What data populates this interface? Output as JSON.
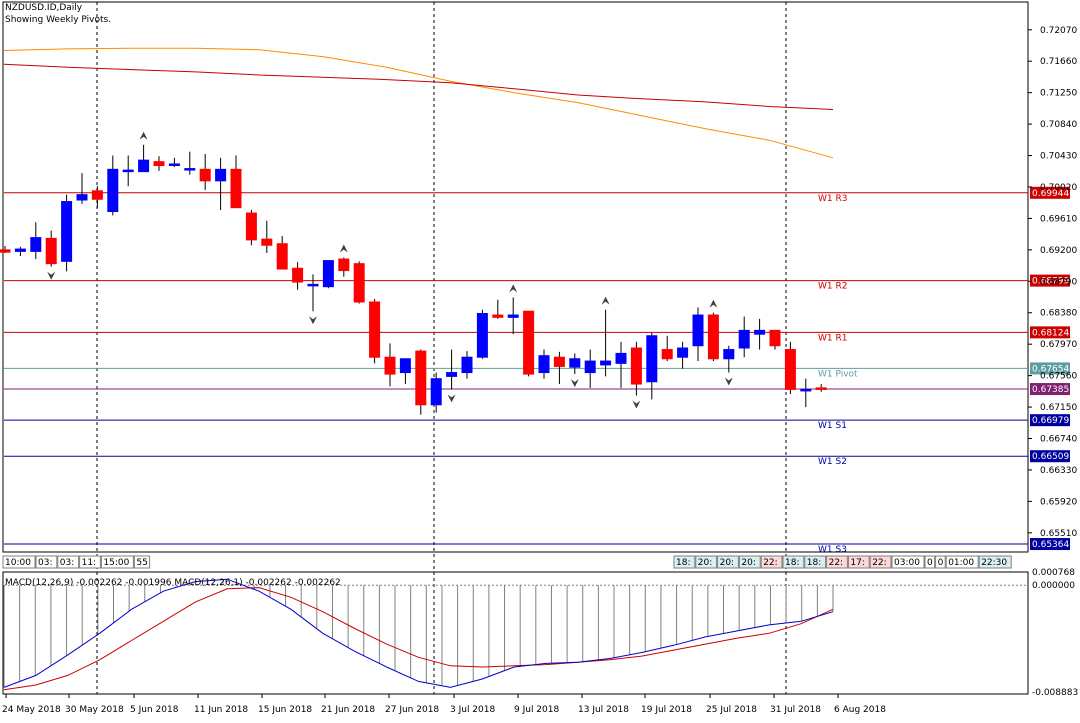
{
  "header": {
    "symbol_line": "NZDUSD.ID,Daily",
    "subtitle_line": "Showing Weekly Pivots."
  },
  "colors": {
    "bull": "#0000ff",
    "bear": "#ff0000",
    "wick": "#000000",
    "ma_fast": "#ff8c00",
    "ma_slow": "#c80000",
    "resistance": "#cc0000",
    "pivot": "#5f9ea0",
    "support": "#00009f",
    "macd_hist": "#808080",
    "macd_line": "#0000cc",
    "signal_line": "#cc0000"
  },
  "price_axis": {
    "ticks": [
      "0.72070",
      "0.71660",
      "0.71250",
      "0.70840",
      "0.70430",
      "0.70020",
      "0.69610",
      "0.69200",
      "0.68790",
      "0.68380",
      "0.67970",
      "0.67560",
      "0.67150",
      "0.66740",
      "0.66330",
      "0.65920",
      "0.65510"
    ],
    "range": [
      0.6526,
      0.7238
    ]
  },
  "pivots": [
    {
      "label": "W1 R3",
      "value": 0.69944,
      "tag": "0.69944",
      "kind": "resistance"
    },
    {
      "label": "W1 R2",
      "value": 0.68799,
      "tag": "0.68799",
      "kind": "resistance"
    },
    {
      "label": "W1 R1",
      "value": 0.68124,
      "tag": "0.68124",
      "kind": "resistance"
    },
    {
      "label": "W1 Pivot",
      "value": 0.67654,
      "tag": "0.67654",
      "kind": "pivot"
    },
    {
      "label": "",
      "value": 0.67385,
      "tag": "0.67385",
      "kind": "ma"
    },
    {
      "label": "W1 S1",
      "value": 0.66979,
      "tag": "0.66979",
      "kind": "support"
    },
    {
      "label": "W1 S2",
      "value": 0.66509,
      "tag": "0.66509",
      "kind": "support"
    },
    {
      "label": "W1 S3",
      "value": 0.65364,
      "tag": "0.65364",
      "kind": "support"
    }
  ],
  "time_axis": {
    "labels": [
      "24 May 2018",
      "30 May 2018",
      "5 Jun 2018",
      "11 Jun 2018",
      "15 Jun 2018",
      "21 Jun 2018",
      "27 Jun 2018",
      "3 Jul 2018",
      "9 Jul 2018",
      "13 Jul 2018",
      "19 Jul 2018",
      "25 Jul 2018",
      "31 Jul 2018",
      "6 Aug 2018"
    ]
  },
  "session_boxes_left": [
    "10:00",
    "03:",
    "03:",
    "11:",
    "15:00",
    "55"
  ],
  "session_boxes_right": [
    "18:",
    "20:",
    "20:",
    "20:",
    "22:",
    "18:",
    "18:",
    "22:",
    "17:",
    "22:",
    "03:00",
    "0",
    "0",
    "01:00",
    "22:30"
  ],
  "macd": {
    "title": "MACD(12,26,9) -0.002262 -0.001996 MACD(12,26,1) -0.002262 -0.002262",
    "ticks": [
      "0.000768",
      "0.000000",
      "-0.008883"
    ],
    "range": [
      -0.008883,
      0.000768
    ]
  },
  "chart_data": {
    "type": "candlestick",
    "title": "NZDUSD.ID,Daily",
    "candles": [
      {
        "o": 0.692,
        "h": 0.6925,
        "l": 0.6916,
        "c": 0.6917
      },
      {
        "o": 0.6918,
        "h": 0.6924,
        "l": 0.6912,
        "c": 0.6921
      },
      {
        "o": 0.6918,
        "h": 0.6956,
        "l": 0.6908,
        "c": 0.6936
      },
      {
        "o": 0.6935,
        "h": 0.6945,
        "l": 0.6898,
        "c": 0.6902
      },
      {
        "o": 0.6905,
        "h": 0.6992,
        "l": 0.6892,
        "c": 0.6983
      },
      {
        "o": 0.6985,
        "h": 0.702,
        "l": 0.698,
        "c": 0.6992
      },
      {
        "o": 0.6997,
        "h": 0.7003,
        "l": 0.6975,
        "c": 0.6986
      },
      {
        "o": 0.697,
        "h": 0.7043,
        "l": 0.6965,
        "c": 0.7025
      },
      {
        "o": 0.7022,
        "h": 0.7043,
        "l": 0.7003,
        "c": 0.7024
      },
      {
        "o": 0.7022,
        "h": 0.7057,
        "l": 0.7022,
        "c": 0.7037
      },
      {
        "o": 0.7035,
        "h": 0.7042,
        "l": 0.7023,
        "c": 0.703
      },
      {
        "o": 0.703,
        "h": 0.704,
        "l": 0.7028,
        "c": 0.7032
      },
      {
        "o": 0.7025,
        "h": 0.7048,
        "l": 0.7018,
        "c": 0.7026
      },
      {
        "o": 0.7025,
        "h": 0.7045,
        "l": 0.6998,
        "c": 0.701
      },
      {
        "o": 0.701,
        "h": 0.704,
        "l": 0.6972,
        "c": 0.7025
      },
      {
        "o": 0.7025,
        "h": 0.7043,
        "l": 0.6977,
        "c": 0.6975
      },
      {
        "o": 0.6968,
        "h": 0.6972,
        "l": 0.6926,
        "c": 0.6933
      },
      {
        "o": 0.6934,
        "h": 0.6958,
        "l": 0.6916,
        "c": 0.6926
      },
      {
        "o": 0.6928,
        "h": 0.6938,
        "l": 0.6896,
        "c": 0.6895
      },
      {
        "o": 0.6896,
        "h": 0.6904,
        "l": 0.6868,
        "c": 0.6878
      },
      {
        "o": 0.6875,
        "h": 0.6888,
        "l": 0.684,
        "c": 0.6875
      },
      {
        "o": 0.6872,
        "h": 0.6906,
        "l": 0.687,
        "c": 0.6906
      },
      {
        "o": 0.6908,
        "h": 0.691,
        "l": 0.6885,
        "c": 0.6893
      },
      {
        "o": 0.6902,
        "h": 0.6905,
        "l": 0.685,
        "c": 0.6852
      },
      {
        "o": 0.6852,
        "h": 0.6856,
        "l": 0.6772,
        "c": 0.678
      },
      {
        "o": 0.678,
        "h": 0.6798,
        "l": 0.6742,
        "c": 0.6758
      },
      {
        "o": 0.676,
        "h": 0.6778,
        "l": 0.6745,
        "c": 0.6778
      },
      {
        "o": 0.6788,
        "h": 0.679,
        "l": 0.6705,
        "c": 0.6718
      },
      {
        "o": 0.6718,
        "h": 0.676,
        "l": 0.6708,
        "c": 0.6752
      },
      {
        "o": 0.6755,
        "h": 0.679,
        "l": 0.6738,
        "c": 0.676
      },
      {
        "o": 0.676,
        "h": 0.6788,
        "l": 0.6752,
        "c": 0.678
      },
      {
        "o": 0.678,
        "h": 0.6842,
        "l": 0.6778,
        "c": 0.6837
      },
      {
        "o": 0.6835,
        "h": 0.6855,
        "l": 0.683,
        "c": 0.6832
      },
      {
        "o": 0.6832,
        "h": 0.6858,
        "l": 0.681,
        "c": 0.6835
      },
      {
        "o": 0.684,
        "h": 0.684,
        "l": 0.6755,
        "c": 0.6758
      },
      {
        "o": 0.676,
        "h": 0.679,
        "l": 0.6752,
        "c": 0.6782
      },
      {
        "o": 0.678,
        "h": 0.6787,
        "l": 0.6745,
        "c": 0.6768
      },
      {
        "o": 0.6767,
        "h": 0.6785,
        "l": 0.6758,
        "c": 0.6778
      },
      {
        "o": 0.676,
        "h": 0.679,
        "l": 0.674,
        "c": 0.6775
      },
      {
        "o": 0.677,
        "h": 0.6842,
        "l": 0.6755,
        "c": 0.6775
      },
      {
        "o": 0.6772,
        "h": 0.68,
        "l": 0.674,
        "c": 0.6785
      },
      {
        "o": 0.6792,
        "h": 0.68,
        "l": 0.673,
        "c": 0.6745
      },
      {
        "o": 0.6748,
        "h": 0.6812,
        "l": 0.6725,
        "c": 0.6808
      },
      {
        "o": 0.679,
        "h": 0.6808,
        "l": 0.6775,
        "c": 0.6778
      },
      {
        "o": 0.678,
        "h": 0.68,
        "l": 0.6765,
        "c": 0.6792
      },
      {
        "o": 0.6795,
        "h": 0.6845,
        "l": 0.6775,
        "c": 0.6835
      },
      {
        "o": 0.6835,
        "h": 0.6838,
        "l": 0.6775,
        "c": 0.6778
      },
      {
        "o": 0.6778,
        "h": 0.6795,
        "l": 0.676,
        "c": 0.679
      },
      {
        "o": 0.6792,
        "h": 0.6833,
        "l": 0.678,
        "c": 0.6815
      },
      {
        "o": 0.681,
        "h": 0.683,
        "l": 0.679,
        "c": 0.6815
      },
      {
        "o": 0.6815,
        "h": 0.6815,
        "l": 0.679,
        "c": 0.6795
      },
      {
        "o": 0.679,
        "h": 0.68,
        "l": 0.6732,
        "c": 0.6738
      },
      {
        "o": 0.6738,
        "h": 0.6752,
        "l": 0.6715,
        "c": 0.6738
      },
      {
        "o": 0.674,
        "h": 0.6745,
        "l": 0.6735,
        "c": 0.6738
      }
    ],
    "ma_fast": [
      0.718,
      0.7182,
      0.7183,
      0.7183,
      0.7181,
      0.7172,
      0.7158,
      0.714,
      0.7125,
      0.7112,
      0.7095,
      0.7078,
      0.7063,
      0.704
    ],
    "ma_slow": [
      0.7162,
      0.7158,
      0.7155,
      0.7152,
      0.7148,
      0.7145,
      0.7142,
      0.7138,
      0.713,
      0.7122,
      0.7117,
      0.7113,
      0.7107,
      0.7103
    ],
    "macd_line": [
      -0.0085,
      -0.0075,
      -0.0058,
      -0.004,
      -0.002,
      -0.0005,
      0.0003,
      0.0005,
      -0.0005,
      -0.002,
      -0.004,
      -0.0055,
      -0.0068,
      -0.008,
      -0.0085,
      -0.0078,
      -0.0068,
      -0.0065,
      -0.0064,
      -0.0061,
      -0.0056,
      -0.005,
      -0.0043,
      -0.0038,
      -0.0033,
      -0.003,
      -0.0022
    ],
    "signal_line": [
      -0.0087,
      -0.0083,
      -0.0075,
      -0.0062,
      -0.0046,
      -0.003,
      -0.0014,
      -0.0003,
      -0.0002,
      -0.001,
      -0.0022,
      -0.0036,
      -0.0049,
      -0.006,
      -0.0067,
      -0.0068,
      -0.0067,
      -0.0066,
      -0.0064,
      -0.0062,
      -0.0059,
      -0.0054,
      -0.0049,
      -0.0044,
      -0.004,
      -0.0032,
      -0.002
    ]
  }
}
